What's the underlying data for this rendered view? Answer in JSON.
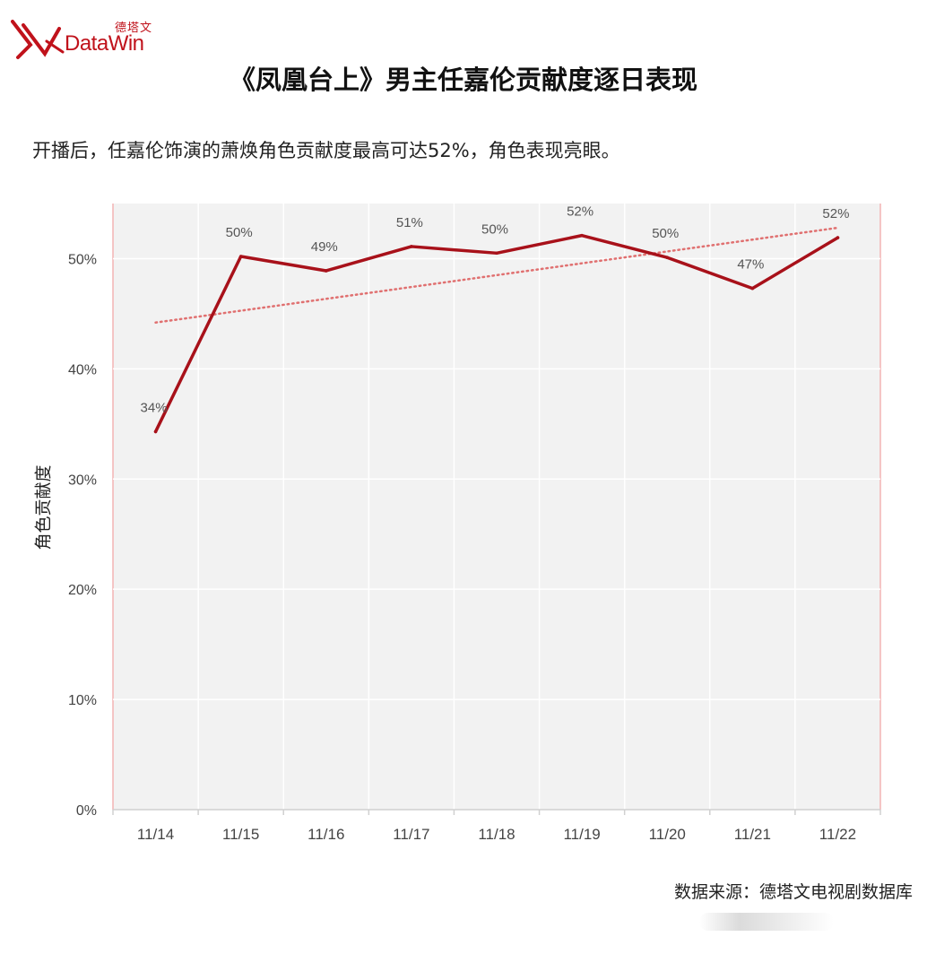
{
  "brand": {
    "name_cn": "德塔文",
    "name_en": "DataWin",
    "color": "#c0121b"
  },
  "header": {
    "title": "《凤凰台上》男主任嘉伦贡献度逐日表现",
    "subtitle": "开播后，任嘉伦饰演的萧焕角色贡献度最高可达52%，角色表现亮眼。"
  },
  "footer": {
    "source": "数据来源：德塔文电视剧数据库"
  },
  "chart_data": {
    "type": "line",
    "title": "《凤凰台上》男主任嘉伦贡献度逐日表现",
    "ylabel": "角色贡献度",
    "xlabel": "",
    "categories": [
      "11/14",
      "11/15",
      "11/16",
      "11/17",
      "11/18",
      "11/19",
      "11/20",
      "11/21",
      "11/22"
    ],
    "series": [
      {
        "values": [
          34.3,
          50.2,
          48.9,
          51.1,
          50.5,
          52.1,
          50.1,
          47.3,
          51.9
        ],
        "data_labels": [
          "34%",
          "50%",
          "49%",
          "51%",
          "50%",
          "52%",
          "50%",
          "47%",
          "52%"
        ],
        "color": "#a8111a"
      }
    ],
    "trendline": {
      "type": "linear",
      "style": "dotted",
      "color": "#e07070",
      "start": 44.2,
      "end": 52.8
    },
    "ylim": [
      0,
      55
    ],
    "yticks": [
      0,
      10,
      20,
      30,
      40,
      50
    ],
    "ytick_labels": [
      "0%",
      "10%",
      "20%",
      "30%",
      "40%",
      "50%"
    ],
    "grid": true,
    "plot_background": "#f2f2f2",
    "legend": "none"
  }
}
